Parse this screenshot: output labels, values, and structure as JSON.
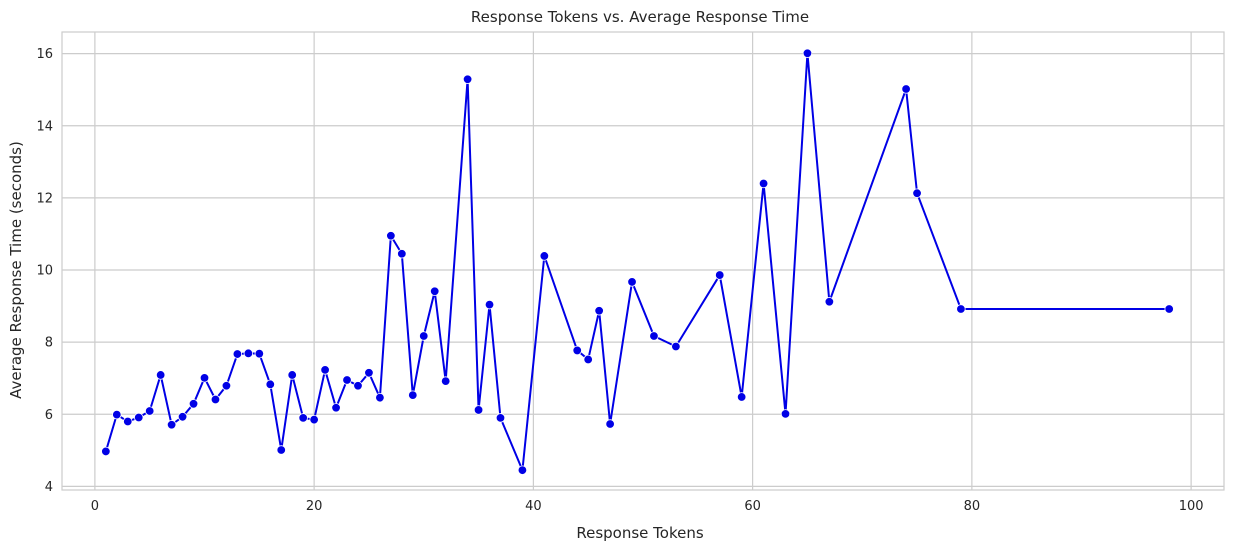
{
  "chart_data": {
    "type": "line",
    "title": "Response Tokens vs. Average Response Time",
    "xlabel": "Response Tokens",
    "ylabel": "Average Response Time (seconds)",
    "xlim": [
      -3,
      103
    ],
    "ylim": [
      3.9,
      16.6
    ],
    "xticks": [
      0,
      20,
      40,
      60,
      80,
      100
    ],
    "yticks": [
      4,
      6,
      8,
      10,
      12,
      14,
      16
    ],
    "grid": true,
    "colors": {
      "line": "#0000e6",
      "marker": "#0000e6",
      "marker_edge": "#ffffff",
      "grid": "#cccccc",
      "frame": "#cccccc"
    },
    "series": [
      {
        "x": [
          1,
          2,
          3,
          4,
          5,
          6,
          7,
          8,
          9,
          10,
          11,
          12,
          13,
          14,
          15,
          16,
          17,
          18,
          19,
          20,
          21,
          22,
          23,
          24,
          25,
          26,
          27,
          28,
          29,
          30,
          31,
          32,
          34,
          35,
          36,
          37,
          39,
          41,
          44,
          45,
          46,
          47,
          49,
          51,
          53,
          57,
          59,
          61,
          63,
          65,
          67,
          74,
          75,
          79,
          98
        ],
        "y": [
          4.97,
          5.99,
          5.8,
          5.91,
          6.09,
          7.09,
          5.71,
          5.93,
          6.29,
          7.01,
          6.41,
          6.79,
          7.67,
          7.69,
          7.68,
          6.83,
          5.01,
          7.09,
          5.9,
          5.85,
          7.23,
          6.18,
          6.95,
          6.79,
          7.15,
          6.46,
          10.95,
          10.45,
          6.53,
          8.17,
          9.41,
          6.92,
          15.29,
          6.12,
          9.04,
          5.9,
          4.45,
          10.39,
          7.77,
          7.52,
          8.87,
          5.73,
          9.67,
          8.17,
          7.88,
          9.86,
          6.48,
          12.4,
          6.01,
          16.01,
          9.12,
          15.02,
          12.13,
          8.92,
          8.92
        ]
      }
    ]
  }
}
